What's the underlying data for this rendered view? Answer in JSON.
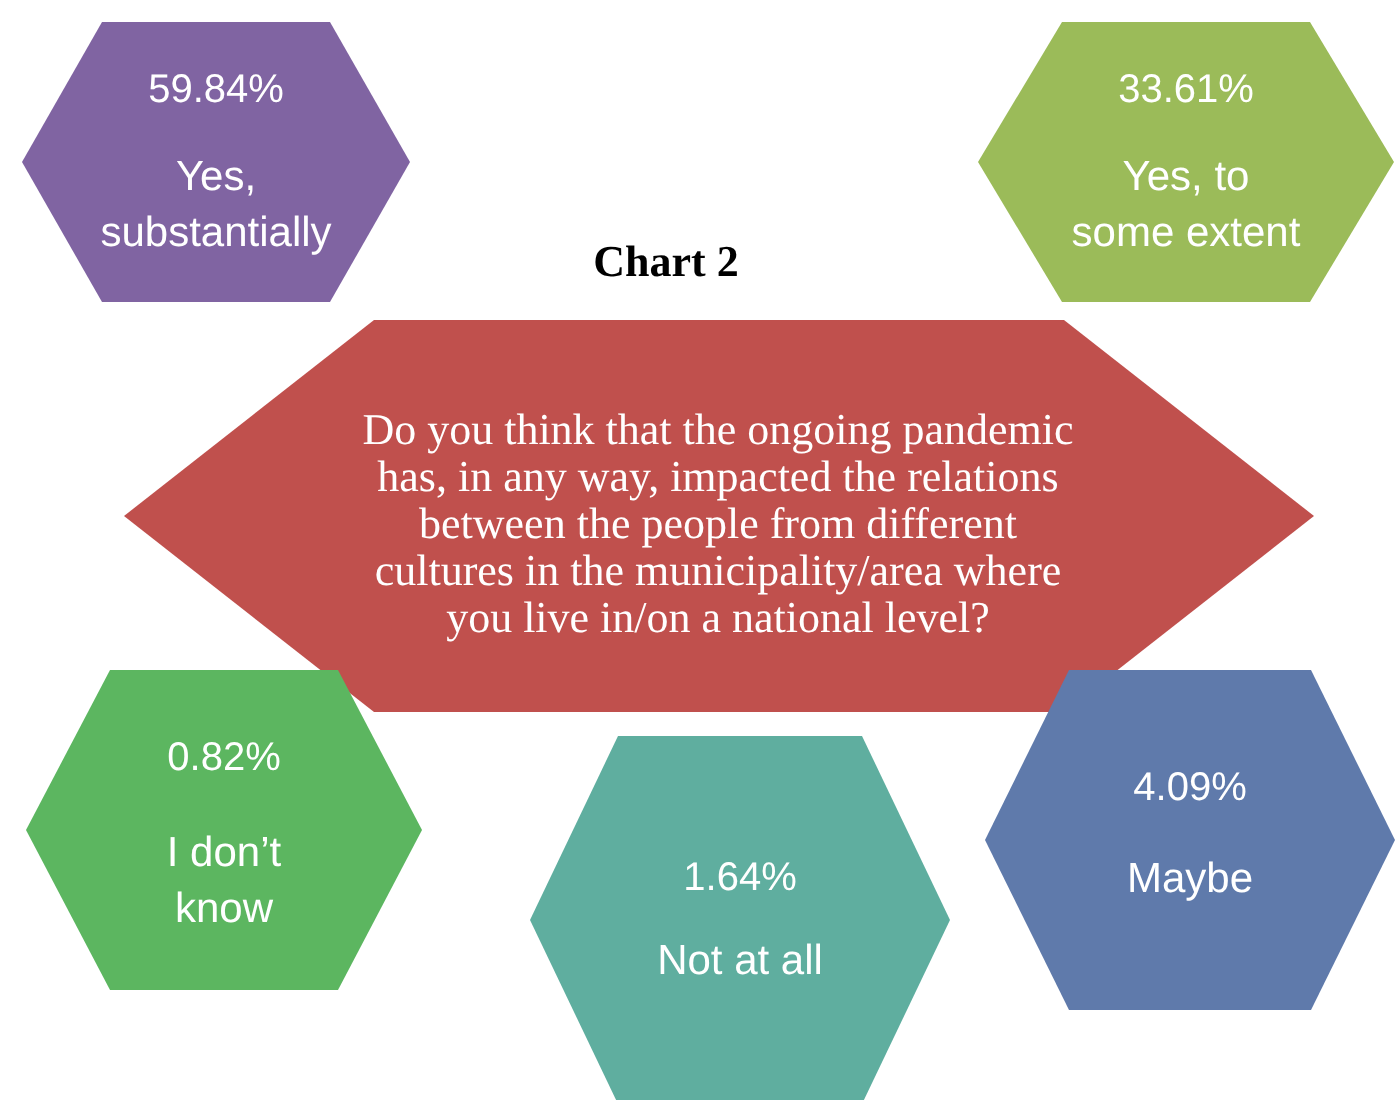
{
  "chart_data": {
    "type": "other",
    "title": "Chart 2",
    "subtitle": "Do you think that the ongoing pandemic has, in any way, impacted the relations between the people from different cultures in the municipality/area where you live in/on a national level?",
    "categories": [
      "Yes, substantially",
      "Yes, to some extent",
      "I don’t know",
      "Not at all",
      "Maybe"
    ],
    "values": [
      59.84,
      33.61,
      0.82,
      1.64,
      4.09
    ],
    "value_labels": [
      "59.84%",
      "33.61%",
      "0.82%",
      "1.64%",
      "4.09%"
    ],
    "colors": [
      "#8064a2",
      "#9bbb59",
      "#5cb660",
      "#5fae9f",
      "#5f7aab"
    ]
  }
}
